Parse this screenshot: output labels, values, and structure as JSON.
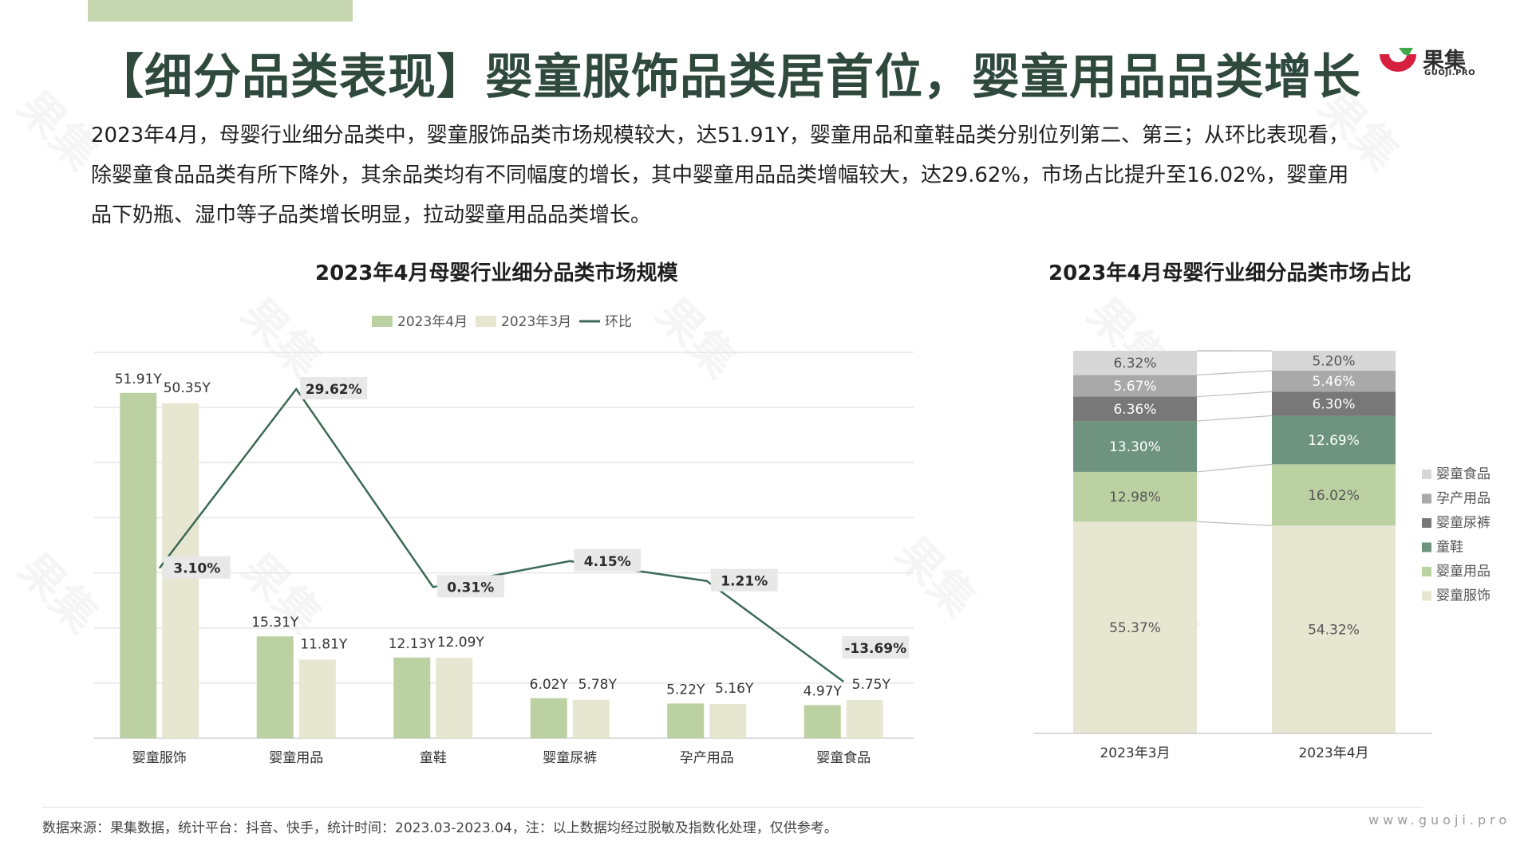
{
  "header": {
    "title": "【细分品类表现】婴童服饰品类居首位，婴童用品品类增长",
    "logo_cn": "果集",
    "logo_en": "GUOJI.PRO"
  },
  "description": [
    "2023年4月，母婴行业细分品类中，婴童服饰品类市场规模较大，达51.91Y，婴童用品和童鞋品类分别位列第二、第三；从环比表现看，",
    "除婴童食品品类有所下降外，其余品类均有不同幅度的增长，其中婴童用品品类增幅较大，达29.62%，市场占比提升至16.02%，婴童用",
    "品下奶瓶、湿巾等子品类增长明显，拉动婴童用品品类增长。"
  ],
  "footer": {
    "source": "数据来源：果集数据，统计平台：抖音、快手，统计时间：2023.03-2023.04，注：以上数据均经过脱敏及指数化处理，仅供参考。",
    "website": "www.guoji.pro"
  },
  "colors": {
    "apr": "#bcd1a2",
    "mar": "#e7e6d1",
    "line": "#3b6a55",
    "title": "#2f4a3d",
    "logo_red": "#d7203f",
    "logo_green": "#3ea84b"
  },
  "chart_data": [
    {
      "type": "bar",
      "title": "2023年4月母婴行业细分品类市场规模",
      "categories": [
        "婴童服饰",
        "婴童用品",
        "童鞋",
        "婴童尿裤",
        "孕产用品",
        "婴童食品"
      ],
      "series": [
        {
          "name": "2023年4月",
          "type": "bar",
          "values": [
            51.91,
            15.31,
            12.13,
            6.02,
            5.22,
            4.97
          ],
          "labels": [
            "51.91Y",
            "15.31Y",
            "12.13Y",
            "6.02Y",
            "5.22Y",
            "4.97Y"
          ]
        },
        {
          "name": "2023年3月",
          "type": "bar",
          "values": [
            50.35,
            11.81,
            12.09,
            5.78,
            5.16,
            5.75
          ],
          "labels": [
            "50.35Y",
            "11.81Y",
            "12.09Y",
            "5.78Y",
            "5.16Y",
            "5.75Y"
          ]
        },
        {
          "name": "环比",
          "type": "line",
          "values": [
            3.1,
            29.62,
            0.31,
            4.15,
            1.21,
            -13.69
          ],
          "labels": [
            "3.10%",
            "29.62%",
            "0.31%",
            "4.15%",
            "1.21%",
            "-13.69%"
          ]
        }
      ],
      "legend_position": "top-center",
      "grid": true
    },
    {
      "type": "bar",
      "stacked": true,
      "percent": true,
      "title": "2023年4月母婴行业细分品类市场占比",
      "categories": [
        "2023年3月",
        "2023年4月"
      ],
      "series": [
        {
          "name": "婴童服饰",
          "values": [
            55.37,
            54.32
          ],
          "labels": [
            "55.37%",
            "54.32%"
          ],
          "color": "#e7e6d1"
        },
        {
          "name": "婴童用品",
          "values": [
            12.98,
            16.02
          ],
          "labels": [
            "12.98%",
            "16.02%"
          ],
          "color": "#bcd1a2"
        },
        {
          "name": "童鞋",
          "values": [
            13.3,
            12.69
          ],
          "labels": [
            "13.30%",
            "12.69%"
          ],
          "color": "#6e9480"
        },
        {
          "name": "婴童尿裤",
          "values": [
            6.36,
            6.3
          ],
          "labels": [
            "6.36%",
            "6.30%"
          ],
          "color": "#787878"
        },
        {
          "name": "孕产用品",
          "values": [
            5.67,
            5.46
          ],
          "labels": [
            "5.67%",
            "5.46%"
          ],
          "color": "#a9a9a9"
        },
        {
          "name": "婴童食品",
          "values": [
            6.32,
            5.2
          ],
          "labels": [
            "6.32%",
            "5.20%"
          ],
          "color": "#d7d7d7"
        }
      ],
      "legend_position": "right"
    }
  ]
}
